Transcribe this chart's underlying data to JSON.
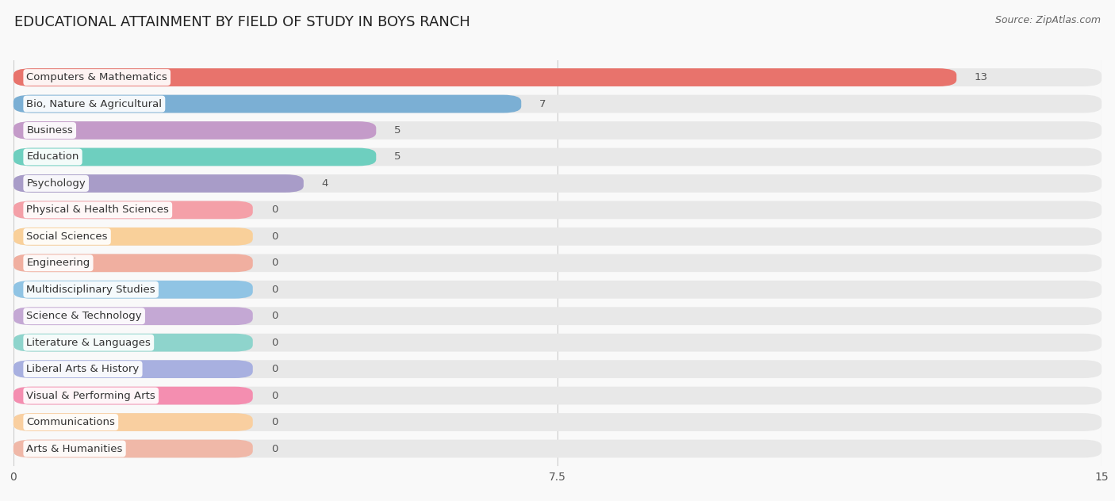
{
  "title": "EDUCATIONAL ATTAINMENT BY FIELD OF STUDY IN BOYS RANCH",
  "source": "Source: ZipAtlas.com",
  "categories": [
    "Computers & Mathematics",
    "Bio, Nature & Agricultural",
    "Business",
    "Education",
    "Psychology",
    "Physical & Health Sciences",
    "Social Sciences",
    "Engineering",
    "Multidisciplinary Studies",
    "Science & Technology",
    "Literature & Languages",
    "Liberal Arts & History",
    "Visual & Performing Arts",
    "Communications",
    "Arts & Humanities"
  ],
  "values": [
    13,
    7,
    5,
    5,
    4,
    0,
    0,
    0,
    0,
    0,
    0,
    0,
    0,
    0,
    0
  ],
  "bar_colors": [
    "#E8736C",
    "#7BAFD4",
    "#C49BC9",
    "#6ECFBF",
    "#A89CC8",
    "#F4A0A8",
    "#F9D09A",
    "#F0AFA0",
    "#90C4E4",
    "#C4A8D4",
    "#8ED4CC",
    "#A8B0E0",
    "#F48EB0",
    "#F9CFA0",
    "#F0B8A8"
  ],
  "xlim": [
    0,
    15
  ],
  "xticks": [
    0,
    7.5,
    15
  ],
  "background_color": "#f9f9f9",
  "bar_bg_color": "#e8e8e8",
  "title_fontsize": 13,
  "label_fontsize": 9.5,
  "source_fontsize": 9,
  "zero_bar_width": 3.3
}
